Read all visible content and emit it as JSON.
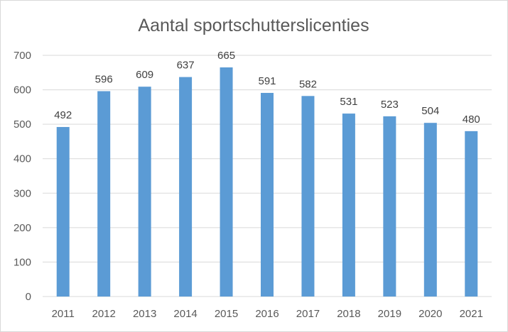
{
  "chart_data": {
    "type": "bar",
    "title": "Aantal sportschutterslicenties",
    "xlabel": "",
    "ylabel": "",
    "categories": [
      "2011",
      "2012",
      "2013",
      "2014",
      "2015",
      "2016",
      "2017",
      "2018",
      "2019",
      "2020",
      "2021"
    ],
    "values": [
      492,
      596,
      609,
      637,
      665,
      591,
      582,
      531,
      523,
      504,
      480
    ],
    "ylim": [
      0,
      700
    ],
    "yticks": [
      "0",
      "100",
      "200",
      "300",
      "400",
      "500",
      "600",
      "700"
    ],
    "grid": true,
    "legend": "none",
    "bar_color": "#5b9bd5"
  }
}
